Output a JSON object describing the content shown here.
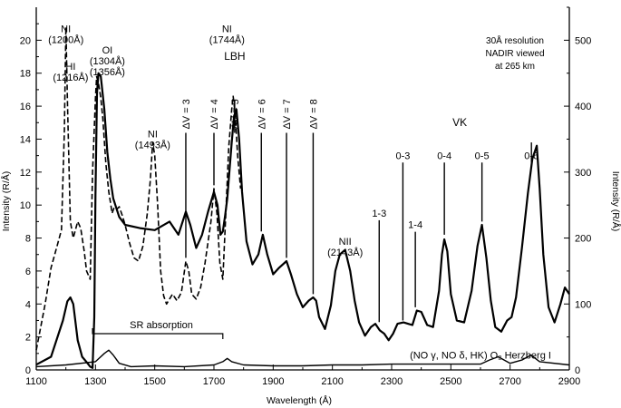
{
  "chart_data": {
    "type": "line",
    "xlabel": "Wavelength (Å)",
    "ylabel_left": "Intensity (R/Å)",
    "ylabel_right": "Intensity (R/Å)",
    "xlim": [
      1100,
      2900
    ],
    "ylim_left": [
      0,
      22
    ],
    "ylim_right": [
      0,
      550
    ],
    "xticks": [
      1100,
      1300,
      1500,
      1700,
      1900,
      2100,
      2300,
      2500,
      2700,
      2900
    ],
    "yticks_left": [
      0,
      2,
      4,
      6,
      8,
      10,
      12,
      14,
      16,
      18,
      20
    ],
    "yticks_right": [
      0,
      100,
      200,
      300,
      400,
      500
    ],
    "info_text": [
      "30Å resolution",
      "NADIR viewed",
      "at 265 km"
    ],
    "series": [
      {
        "style": "dashed",
        "axis": "left",
        "x": [
          1100,
          1130,
          1150,
          1170,
          1185,
          1195,
          1200,
          1205,
          1215,
          1225,
          1240,
          1250,
          1262,
          1270,
          1282,
          1290,
          1300,
          1304,
          1310,
          1318,
          1325,
          1335,
          1345,
          1352,
          1356,
          1362,
          1370,
          1380,
          1390,
          1400,
          1415,
          1430,
          1445,
          1460,
          1475,
          1485,
          1493,
          1500,
          1510,
          1520,
          1530,
          1540,
          1550,
          1560,
          1575,
          1590,
          1605,
          1615,
          1625,
          1640,
          1655,
          1670,
          1690,
          1700,
          1710,
          1720,
          1730,
          1740,
          1750,
          1760,
          1765,
          1772,
          1780,
          1790
        ],
        "y": [
          1.2,
          4.0,
          6.2,
          7.5,
          8.5,
          14.5,
          20.8,
          16.5,
          9.0,
          8.0,
          9.0,
          8.6,
          7.2,
          6.0,
          5.5,
          12.0,
          16.5,
          17.8,
          17.4,
          16.5,
          15.2,
          12.5,
          10.8,
          10.0,
          9.5,
          9.8,
          9.7,
          9.9,
          9.4,
          8.8,
          7.7,
          6.8,
          6.6,
          7.5,
          9.5,
          11.5,
          13.8,
          13.0,
          10.0,
          6.0,
          4.5,
          4.0,
          4.3,
          4.6,
          4.2,
          4.7,
          6.6,
          6.0,
          4.6,
          4.3,
          5.0,
          6.5,
          9.0,
          11.0,
          9.5,
          6.5,
          5.5,
          9.5,
          13.5,
          15.8,
          16.6,
          15.5,
          13.0,
          11.0
        ]
      },
      {
        "style": "solid-heavy",
        "axis": "right",
        "x": [
          1100,
          1150,
          1190,
          1205,
          1215,
          1225,
          1240,
          1255,
          1270,
          1282,
          1290,
          1296,
          1300,
          1305,
          1310,
          1318,
          1330,
          1340,
          1350,
          1360,
          1380,
          1400,
          1450,
          1500,
          1550,
          1580,
          1605,
          1620,
          1640,
          1660,
          1680,
          1700,
          1712,
          1722,
          1730,
          1738,
          1745,
          1752,
          1760,
          1768,
          1776,
          1785,
          1795,
          1810,
          1830,
          1850,
          1865,
          1880,
          1900,
          1920,
          1945,
          1960,
          1980,
          2000,
          2020,
          2035,
          2045,
          2055,
          2075,
          2095,
          2110,
          2125,
          2143,
          2160,
          2175,
          2190,
          2210,
          2230,
          2245,
          2260,
          2275,
          2290,
          2305,
          2320,
          2340,
          2355,
          2370,
          2385,
          2400,
          2420,
          2440,
          2460,
          2470,
          2478,
          2488,
          2500,
          2520,
          2545,
          2570,
          2590,
          2605,
          2620,
          2635,
          2650,
          2670,
          2690,
          2705,
          2720,
          2740,
          2760,
          2775,
          2790,
          2800,
          2812,
          2830,
          2850,
          2870,
          2885,
          2900
        ],
        "y": [
          8,
          20,
          75,
          104,
          110,
          100,
          45,
          20,
          12,
          5,
          3,
          80,
          265,
          420,
          450,
          445,
          395,
          330,
          290,
          260,
          232,
          220,
          215,
          212,
          225,
          205,
          240,
          220,
          185,
          205,
          240,
          270,
          250,
          205,
          210,
          235,
          260,
          300,
          345,
          385,
          395,
          350,
          270,
          195,
          160,
          175,
          205,
          175,
          145,
          155,
          165,
          145,
          115,
          95,
          105,
          110,
          105,
          80,
          62,
          98,
          150,
          175,
          182,
          150,
          105,
          72,
          52,
          65,
          70,
          60,
          55,
          45,
          55,
          70,
          72,
          70,
          68,
          90,
          88,
          68,
          65,
          120,
          175,
          198,
          180,
          115,
          75,
          72,
          120,
          188,
          220,
          170,
          105,
          65,
          58,
          75,
          80,
          110,
          185,
          268,
          320,
          340,
          275,
          175,
          95,
          72,
          100,
          125,
          115
        ]
      },
      {
        "style": "solid-thin",
        "axis": "left",
        "x": [
          1100,
          1200,
          1300,
          1330,
          1345,
          1360,
          1380,
          1420,
          1500,
          1600,
          1700,
          1730,
          1745,
          1760,
          1800,
          1900,
          2000,
          2100,
          2200,
          2300,
          2400,
          2500,
          2600,
          2630,
          2660,
          2700,
          2740,
          2770,
          2800,
          2900
        ],
        "y": [
          0.2,
          0.3,
          0.5,
          1.0,
          1.2,
          0.9,
          0.4,
          0.2,
          0.25,
          0.2,
          0.3,
          0.5,
          0.7,
          0.5,
          0.3,
          0.25,
          0.25,
          0.3,
          0.3,
          0.35,
          0.35,
          0.35,
          0.35,
          0.6,
          0.8,
          0.4,
          0.6,
          0.9,
          0.5,
          0.3
        ]
      }
    ],
    "annotations": [
      {
        "lines": [
          "NI",
          "(1200Å)"
        ],
        "x": 1200,
        "y": 20.5
      },
      {
        "lines": [
          "HI",
          "(1216Å)"
        ],
        "x": 1216,
        "y": 18.2
      },
      {
        "lines": [
          "OI",
          "(1304Å)",
          "(1356Å)"
        ],
        "x": 1340,
        "y": 19.2
      },
      {
        "lines": [
          "NI",
          "(1493Å)"
        ],
        "x": 1493,
        "y": 14.1
      },
      {
        "lines": [
          "NI",
          "(1744Å)"
        ],
        "x": 1744,
        "y": 20.5
      },
      {
        "lines": [
          "NII",
          "(2143Å)"
        ],
        "x": 2143,
        "y": 7.6
      },
      {
        "lines": [
          "(NO γ, NO δ, HK) O₂ Herzberg I"
        ],
        "x": 2600,
        "y": 0.7
      }
    ],
    "band_group_labels": [
      {
        "text": "LBH",
        "x": 1770,
        "y": 18.8
      },
      {
        "text": "VK",
        "x": 2530,
        "y": 14.8
      }
    ],
    "band_markers": [
      {
        "label": "ΔV = 3",
        "x": 1605,
        "y": 14.6,
        "y_end": 6.8
      },
      {
        "label": "ΔV = 4",
        "x": 1700,
        "y": 14.6,
        "y_end": 11.2
      },
      {
        "label": "ΔV = 5",
        "x": 1770,
        "y": 14.6,
        "y_end": 16.4
      },
      {
        "label": "ΔV = 6",
        "x": 1860,
        "y": 14.6,
        "y_end": 8.4
      },
      {
        "label": "ΔV = 7",
        "x": 1945,
        "y": 14.6,
        "y_end": 6.8
      },
      {
        "label": "ΔV = 8",
        "x": 2035,
        "y": 14.6,
        "y_end": 4.6
      },
      {
        "label": "0-3",
        "x": 2338,
        "y": 12.8,
        "y_end": 3.0
      },
      {
        "label": "1-3",
        "x": 2258,
        "y": 9.3,
        "y_end": 2.9
      },
      {
        "label": "1-4",
        "x": 2380,
        "y": 8.6,
        "y_end": 3.8
      },
      {
        "label": "0-4",
        "x": 2478,
        "y": 12.8,
        "y_end": 8.2
      },
      {
        "label": "0-5",
        "x": 2605,
        "y": 12.8,
        "y_end": 9.0
      },
      {
        "label": "0-6",
        "x": 2772,
        "y": 12.8,
        "y_end": 13.8
      }
    ],
    "sr_absorption": {
      "label": "SR absorption",
      "x_start": 1290,
      "x_end": 1730,
      "y": 2.2
    }
  }
}
